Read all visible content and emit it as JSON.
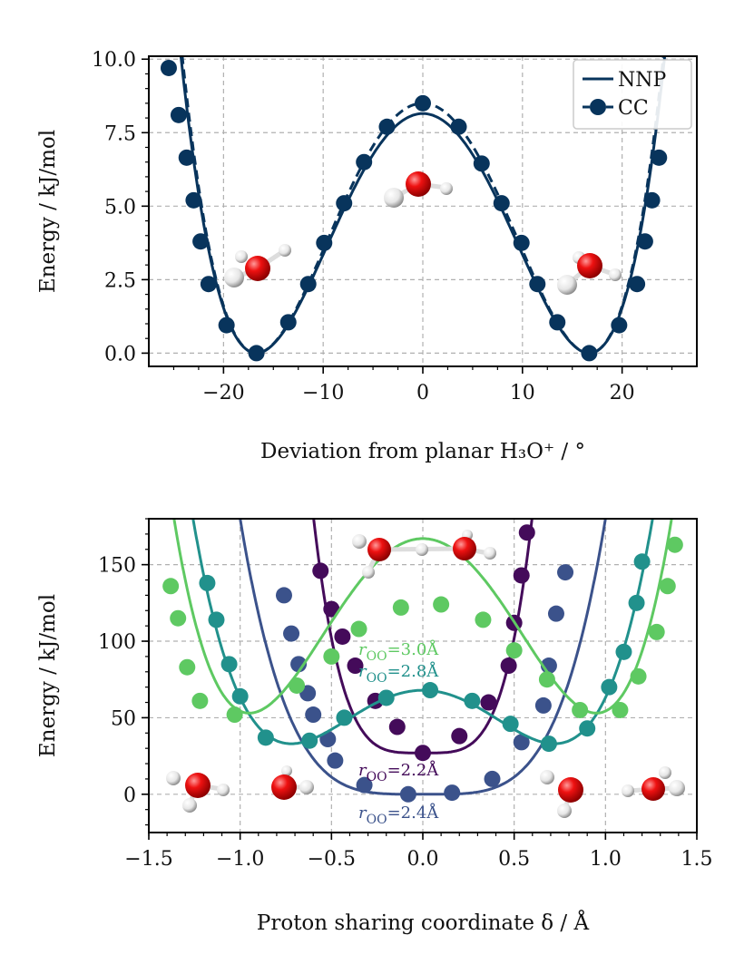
{
  "chart_data": [
    {
      "type": "line",
      "panel": "top",
      "xlabel": "Deviation from planar H₃O⁺ / °",
      "ylabel": "Energy / kJ/mol",
      "xlim": [
        -27.5,
        27.5
      ],
      "ylim": [
        -0.45,
        10.1
      ],
      "xticks": [
        -20,
        -10,
        0,
        10,
        20
      ],
      "xtick_labels": [
        "−20",
        "−10",
        "0",
        "10",
        "20"
      ],
      "yticks": [
        0.0,
        2.5,
        5.0,
        7.5,
        10.0
      ],
      "ytick_labels": [
        "0.0",
        "2.5",
        "5.0",
        "7.5",
        "10.0"
      ],
      "grid": true,
      "legend_position": "top-right",
      "legend": [
        "NNP",
        "CC"
      ],
      "color": "#08345c",
      "barrier_min_angle": 16.7,
      "nnp_barrier": 8.15,
      "cc_barrier": 8.5,
      "cc_points": [
        {
          "x": -25.5,
          "y": 9.7
        },
        {
          "x": -24.5,
          "y": 8.1
        },
        {
          "x": -23.7,
          "y": 6.65
        },
        {
          "x": -23.0,
          "y": 5.2
        },
        {
          "x": -22.3,
          "y": 3.8
        },
        {
          "x": -21.5,
          "y": 2.35
        },
        {
          "x": -19.7,
          "y": 0.95
        },
        {
          "x": -16.7,
          "y": 0.0
        },
        {
          "x": -13.5,
          "y": 1.05
        },
        {
          "x": -11.5,
          "y": 2.35
        },
        {
          "x": -9.9,
          "y": 3.75
        },
        {
          "x": -7.9,
          "y": 5.1
        },
        {
          "x": -5.9,
          "y": 6.5
        },
        {
          "x": -3.6,
          "y": 7.7
        },
        {
          "x": 0.0,
          "y": 8.5
        },
        {
          "x": 3.6,
          "y": 7.7
        },
        {
          "x": 5.9,
          "y": 6.45
        },
        {
          "x": 7.9,
          "y": 5.1
        },
        {
          "x": 9.9,
          "y": 3.75
        },
        {
          "x": 11.5,
          "y": 2.35
        },
        {
          "x": 13.5,
          "y": 1.05
        },
        {
          "x": 16.7,
          "y": 0.0
        },
        {
          "x": 19.7,
          "y": 0.95
        },
        {
          "x": 21.5,
          "y": 2.35
        },
        {
          "x": 22.3,
          "y": 3.8
        },
        {
          "x": 23.0,
          "y": 5.2
        },
        {
          "x": 23.7,
          "y": 6.65
        }
      ]
    },
    {
      "type": "line",
      "panel": "bottom",
      "xlabel": "Proton sharing coordinate δ / Å",
      "ylabel": "Energy / kJ/mol",
      "xlim": [
        -1.5,
        1.5
      ],
      "ylim": [
        -25,
        180
      ],
      "xticks": [
        -1.5,
        -1.0,
        -0.5,
        0.0,
        0.5,
        1.0,
        1.5
      ],
      "xtick_labels": [
        "−1.5",
        "−1.0",
        "−0.5",
        "0.0",
        "0.5",
        "1.0",
        "1.5"
      ],
      "yticks": [
        0,
        50,
        100,
        150
      ],
      "ytick_labels": [
        "0",
        "50",
        "100",
        "150"
      ],
      "grid": true,
      "series": [
        {
          "name": "r_OO=2.2Å",
          "label_prefix": "r",
          "label_sub": "OO",
          "label_suffix": "=2.2Å",
          "color": "#440b5a",
          "fit": {
            "d0": 0.0,
            "e0": 27,
            "k": 1200
          },
          "points": [
            {
              "x": -0.56,
              "y": 146
            },
            {
              "x": -0.5,
              "y": 121
            },
            {
              "x": -0.44,
              "y": 103
            },
            {
              "x": -0.37,
              "y": 84
            },
            {
              "x": -0.26,
              "y": 61
            },
            {
              "x": -0.14,
              "y": 44
            },
            {
              "x": 0.0,
              "y": 27
            },
            {
              "x": 0.2,
              "y": 38
            },
            {
              "x": 0.36,
              "y": 60
            },
            {
              "x": 0.47,
              "y": 84
            },
            {
              "x": 0.5,
              "y": 112
            },
            {
              "x": 0.54,
              "y": 143
            },
            {
              "x": 0.57,
              "y": 171
            }
          ]
        },
        {
          "name": "r_OO=2.4Å",
          "label_prefix": "r",
          "label_sub": "OO",
          "label_suffix": "=2.4Å",
          "color": "#3b528b",
          "fit": {
            "d0": 0.0,
            "e0": 0,
            "k": 180
          },
          "points": [
            {
              "x": -0.76,
              "y": 130
            },
            {
              "x": -0.72,
              "y": 105
            },
            {
              "x": -0.68,
              "y": 85
            },
            {
              "x": -0.63,
              "y": 66
            },
            {
              "x": -0.6,
              "y": 52
            },
            {
              "x": -0.52,
              "y": 36
            },
            {
              "x": -0.48,
              "y": 22
            },
            {
              "x": -0.32,
              "y": 6
            },
            {
              "x": -0.08,
              "y": 0
            },
            {
              "x": 0.16,
              "y": 1
            },
            {
              "x": 0.38,
              "y": 10
            },
            {
              "x": 0.54,
              "y": 34
            },
            {
              "x": 0.66,
              "y": 58
            },
            {
              "x": 0.69,
              "y": 84
            },
            {
              "x": 0.73,
              "y": 118
            },
            {
              "x": 0.78,
              "y": 145
            }
          ]
        },
        {
          "name": "r_OO=2.8Å",
          "label_prefix": "r",
          "label_sub": "OO",
          "label_suffix": "=2.8Å",
          "color": "#21918c",
          "fit": {
            "d0": 0.72,
            "e0": 33,
            "k": 130
          },
          "points": [
            {
              "x": -1.18,
              "y": 138
            },
            {
              "x": -1.13,
              "y": 114
            },
            {
              "x": -1.06,
              "y": 85
            },
            {
              "x": -1.0,
              "y": 64
            },
            {
              "x": -0.86,
              "y": 37
            },
            {
              "x": -0.62,
              "y": 35
            },
            {
              "x": -0.43,
              "y": 50
            },
            {
              "x": -0.2,
              "y": 63
            },
            {
              "x": 0.04,
              "y": 68
            },
            {
              "x": 0.27,
              "y": 61
            },
            {
              "x": 0.48,
              "y": 46
            },
            {
              "x": 0.69,
              "y": 33
            },
            {
              "x": 0.9,
              "y": 43
            },
            {
              "x": 1.02,
              "y": 70
            },
            {
              "x": 1.1,
              "y": 93
            },
            {
              "x": 1.17,
              "y": 125
            },
            {
              "x": 1.2,
              "y": 152
            }
          ]
        },
        {
          "name": "r_OO=3.0Å",
          "label_prefix": "r",
          "label_sub": "OO",
          "label_suffix": "=3.0Å",
          "color": "#5ec962",
          "fit": {
            "d0": 0.95,
            "e0": 53,
            "k": 140
          },
          "points": [
            {
              "x": -1.38,
              "y": 136
            },
            {
              "x": -1.34,
              "y": 115
            },
            {
              "x": -1.29,
              "y": 83
            },
            {
              "x": -1.22,
              "y": 61
            },
            {
              "x": -1.03,
              "y": 52
            },
            {
              "x": -0.69,
              "y": 71
            },
            {
              "x": -0.5,
              "y": 90
            },
            {
              "x": -0.35,
              "y": 108
            },
            {
              "x": -0.12,
              "y": 122
            },
            {
              "x": 0.1,
              "y": 124
            },
            {
              "x": 0.33,
              "y": 114
            },
            {
              "x": 0.5,
              "y": 94
            },
            {
              "x": 0.68,
              "y": 75
            },
            {
              "x": 0.86,
              "y": 55
            },
            {
              "x": 1.08,
              "y": 55
            },
            {
              "x": 1.18,
              "y": 77
            },
            {
              "x": 1.28,
              "y": 106
            },
            {
              "x": 1.34,
              "y": 136
            },
            {
              "x": 1.38,
              "y": 163
            }
          ]
        }
      ]
    }
  ]
}
